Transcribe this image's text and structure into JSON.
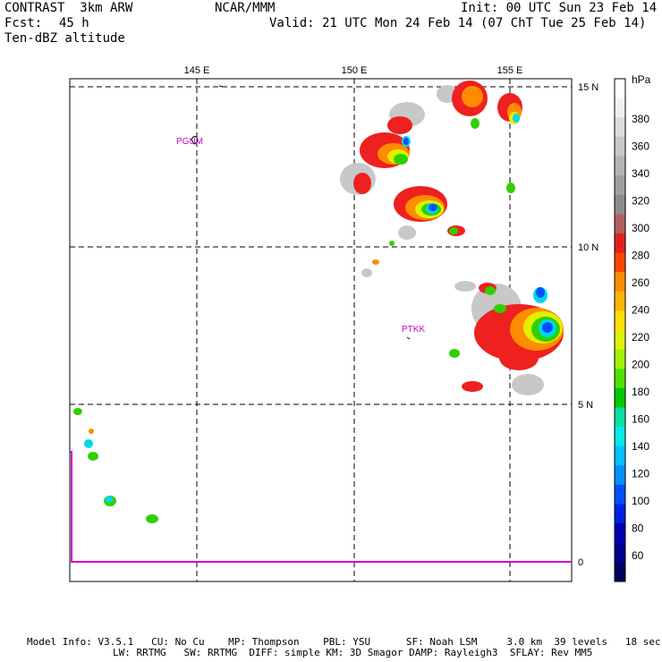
{
  "header": {
    "model_name": "CONTRAST  3km ARW",
    "org": "NCAR/MMM",
    "init": "Init: 00 UTC Sun 23 Feb 14",
    "fcst_label": "Fcst:",
    "fcst_value": "45 h",
    "valid": "Valid: 21 UTC Mon 24 Feb 14 (07 ChT Tue 25 Feb 14)",
    "field": "Ten-dBZ altitude"
  },
  "map": {
    "lon_labels": [
      "145 E",
      "150 E",
      "155 E"
    ],
    "lat_labels": [
      "15 N",
      "10 N",
      "5 N",
      "0"
    ],
    "stations": [
      "PGUM",
      "PTKK"
    ],
    "boundary_color": "#cc00cc",
    "station_color": "#cc00cc"
  },
  "colorbar": {
    "unit": "hPa",
    "labels": [
      "380",
      "360",
      "340",
      "320",
      "300",
      "280",
      "260",
      "240",
      "220",
      "200",
      "180",
      "160",
      "140",
      "120",
      "100",
      "80",
      "60"
    ],
    "colors": [
      "#ffffff",
      "#f0f0f0",
      "#dcdcdc",
      "#c8c8c8",
      "#b4b4b4",
      "#a0a0a0",
      "#8c8c8c",
      "#b06060",
      "#e02020",
      "#ff4500",
      "#ff8c00",
      "#ffb400",
      "#ffe000",
      "#e0f000",
      "#a0f000",
      "#50e000",
      "#00c800",
      "#00e0a0",
      "#00e8e8",
      "#00c0ff",
      "#0090ff",
      "#0050ff",
      "#0020e0",
      "#0000b0",
      "#000090",
      "#000060"
    ]
  },
  "footer": {
    "line1": "Model Info: V3.5.1   CU: No Cu    MP: Thompson    PBL: YSU      SF: Noah LSM     3.0 km  39 levels   18 sec",
    "line2": "LW: RRTMG   SW: RRTMG  DIFF: simple KM: 3D Smagor DAMP: Rayleigh3  SFLAY: Rev MM5"
  }
}
